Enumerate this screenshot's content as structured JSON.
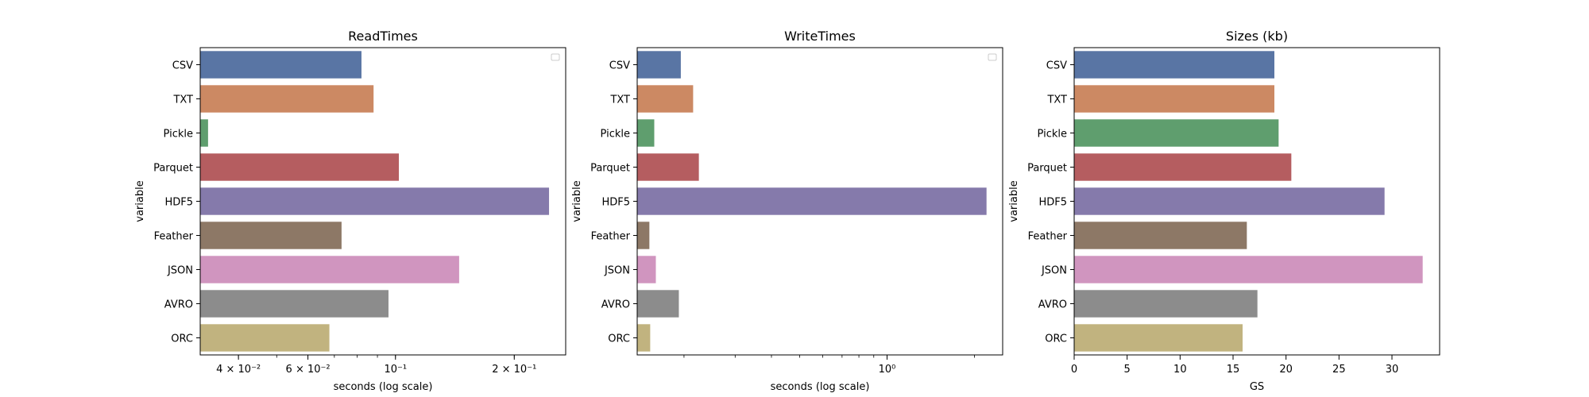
{
  "figure": {
    "background": "#ffffff"
  },
  "palette": [
    "#5975a4",
    "#cc8963",
    "#5f9e6e",
    "#b55d60",
    "#857aab",
    "#8d7866",
    "#d095bf",
    "#8c8c8c",
    "#c1b37f"
  ],
  "chart_data": [
    {
      "type": "bar",
      "orientation": "horizontal",
      "title": "ReadTimes",
      "xlabel": "seconds (log scale)",
      "ylabel": "variable",
      "xscale": "log",
      "categories": [
        "CSV",
        "TXT",
        "Pickle",
        "Parquet",
        "HDF5",
        "Feather",
        "JSON",
        "AVRO",
        "ORC"
      ],
      "values": [
        0.082,
        0.088,
        0.0335,
        0.102,
        0.245,
        0.073,
        0.145,
        0.096,
        0.068
      ],
      "xlim": [
        0.032,
        0.27
      ],
      "xticks": [
        {
          "label": "4 × 10⁻²",
          "value": 0.04
        },
        {
          "label": "6 × 10⁻²",
          "value": 0.06
        },
        {
          "label": "10⁻¹",
          "value": 0.1
        },
        {
          "label": "2 × 10⁻¹",
          "value": 0.2
        }
      ],
      "legend": "upper right (empty)",
      "grid": false
    },
    {
      "type": "bar",
      "orientation": "horizontal",
      "title": "WriteTimes",
      "xlabel": "seconds (log scale)",
      "ylabel": "variable",
      "xscale": "log",
      "categories": [
        "CSV",
        "TXT",
        "Pickle",
        "Parquet",
        "HDF5",
        "Feather",
        "JSON",
        "AVRO",
        "ORC"
      ],
      "values": [
        0.195,
        0.215,
        0.158,
        0.225,
        2.2,
        0.152,
        0.16,
        0.192,
        0.153
      ],
      "xlim": [
        0.138,
        2.5
      ],
      "xticks": [
        {
          "label": "10⁰",
          "value": 1
        }
      ],
      "legend": "upper right (empty)",
      "grid": false
    },
    {
      "type": "bar",
      "orientation": "horizontal",
      "title": "Sizes (kb)",
      "xlabel": "GS",
      "ylabel": "variable",
      "xscale": "linear",
      "categories": [
        "CSV",
        "TXT",
        "Pickle",
        "Parquet",
        "HDF5",
        "Feather",
        "JSON",
        "AVRO",
        "ORC"
      ],
      "values": [
        18.9,
        18.9,
        19.3,
        20.5,
        29.3,
        16.3,
        32.9,
        17.3,
        15.9
      ],
      "xlim": [
        0,
        34.5
      ],
      "xticks": [
        {
          "label": "0",
          "value": 0
        },
        {
          "label": "5",
          "value": 5
        },
        {
          "label": "10",
          "value": 10
        },
        {
          "label": "15",
          "value": 15
        },
        {
          "label": "20",
          "value": 20
        },
        {
          "label": "25",
          "value": 25
        },
        {
          "label": "30",
          "value": 30
        }
      ],
      "grid": false
    }
  ]
}
